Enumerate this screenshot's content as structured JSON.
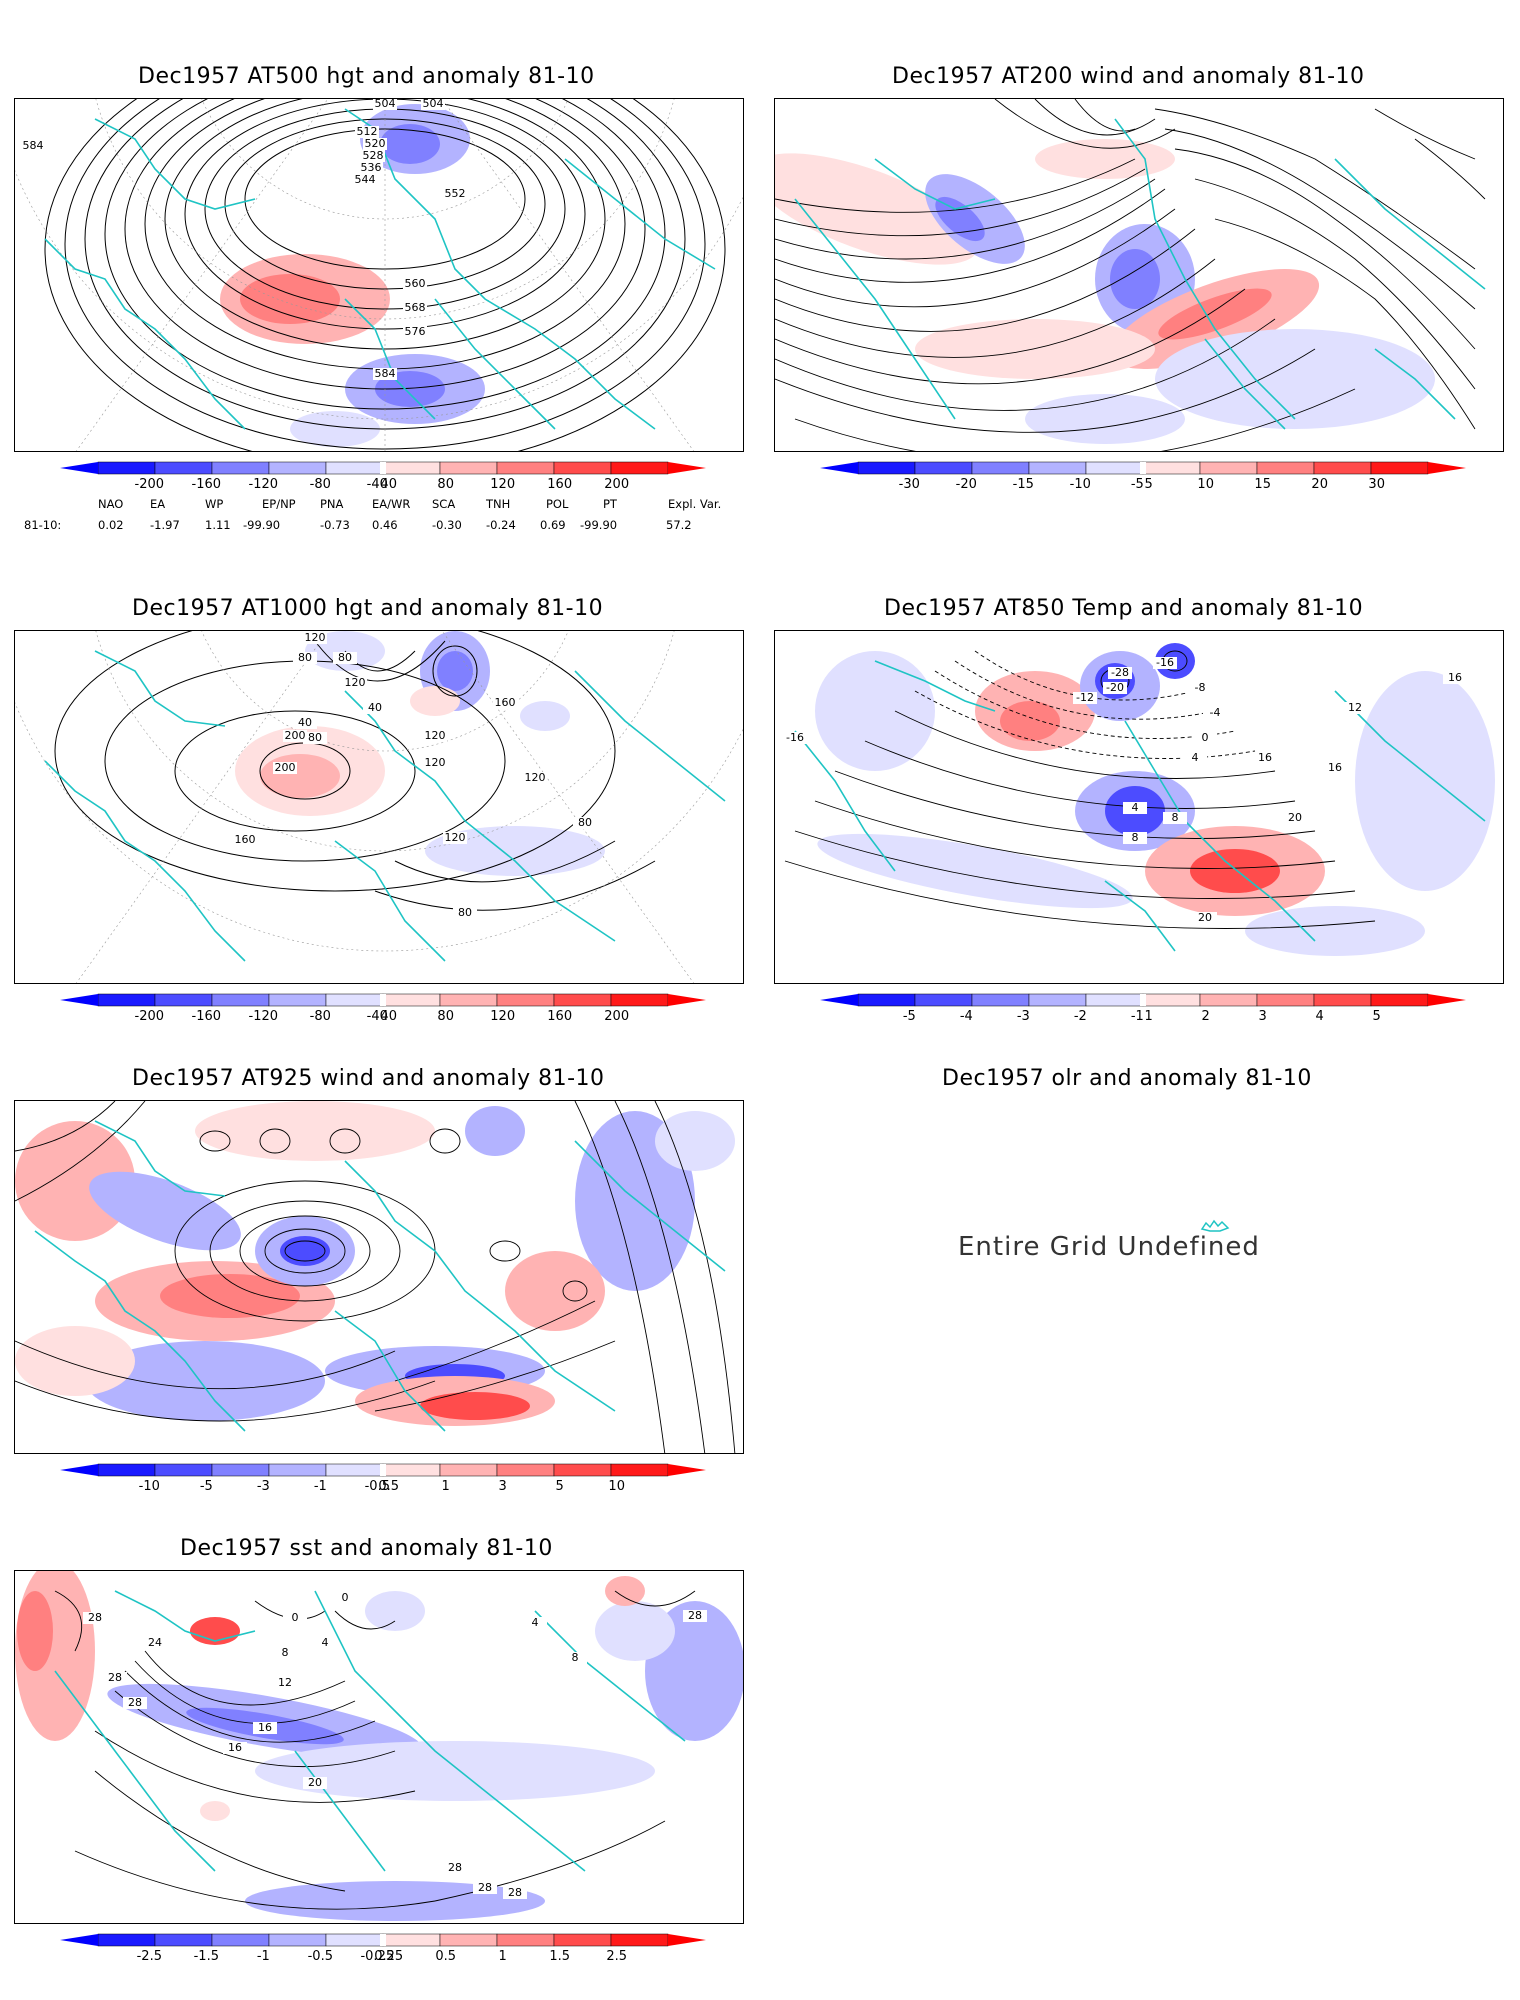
{
  "panels": [
    {
      "id": "p1",
      "title": "Dec1957 AT500 hgt and anomaly 81-10",
      "contour_labels": [
        "504",
        "504",
        "512",
        "520",
        "528",
        "536",
        "544",
        "552",
        "560",
        "568",
        "576",
        "584",
        "584"
      ],
      "colorbar": {
        "labels": [
          "-200",
          "-160",
          "-120",
          "-80",
          "-40",
          "40",
          "80",
          "120",
          "160",
          "200"
        ]
      }
    },
    {
      "id": "p2",
      "title": "Dec1957 AT200 wind and anomaly 81-10",
      "contour_labels": [],
      "colorbar": {
        "labels": [
          "-30",
          "-20",
          "-15",
          "-10",
          "-5",
          "5",
          "10",
          "15",
          "20",
          "30"
        ]
      }
    },
    {
      "id": "p3",
      "title": "Dec1957 AT1000 hgt and anomaly 81-10",
      "contour_labels": [
        "120",
        "80",
        "80",
        "120",
        "40",
        "40",
        "80",
        "200",
        "200",
        "120",
        "120",
        "160",
        "120",
        "80",
        "160",
        "120",
        "80"
      ],
      "colorbar": {
        "labels": [
          "-200",
          "-160",
          "-120",
          "-80",
          "-40",
          "40",
          "80",
          "120",
          "160",
          "200"
        ]
      }
    },
    {
      "id": "p4",
      "title": "Dec1957 AT850 Temp and anomaly 81-10",
      "contour_labels": [
        "-16",
        "-28",
        "-16",
        "-20",
        "-12",
        "-8",
        "-4",
        "0",
        "4",
        "8",
        "12",
        "16",
        "16",
        "16",
        "20",
        "20",
        "4",
        "8"
      ],
      "colorbar": {
        "labels": [
          "-5",
          "-4",
          "-3",
          "-2",
          "-1",
          "1",
          "2",
          "3",
          "4",
          "5"
        ]
      }
    },
    {
      "id": "p5",
      "title": "Dec1957 AT925 wind and anomaly 81-10",
      "contour_labels": [],
      "colorbar": {
        "labels": [
          "-10",
          "-5",
          "-3",
          "-1",
          "-0.5",
          "0.5",
          "1",
          "3",
          "5",
          "10"
        ]
      }
    },
    {
      "id": "p6",
      "title": "Dec1957 olr and anomaly 81-10",
      "undefined_text": "Entire Grid Undefined"
    },
    {
      "id": "p7",
      "title": "Dec1957 sst and anomaly 81-10",
      "contour_labels": [
        "28",
        "28",
        "28",
        "24",
        "0",
        "0",
        "4",
        "8",
        "12",
        "16",
        "16",
        "20",
        "28",
        "28",
        "28",
        "28",
        "4",
        "8"
      ],
      "colorbar": {
        "labels": [
          "-2.5",
          "-1.5",
          "-1",
          "-0.5",
          "-0.25",
          "0.25",
          "0.5",
          "1",
          "1.5",
          "2.5"
        ]
      }
    }
  ],
  "indices": {
    "headers": [
      "NAO",
      "EA",
      "WP",
      "EP/NP",
      "PNA",
      "EA/WR",
      "SCA",
      "TNH",
      "POL",
      "PT",
      "Expl. Var."
    ],
    "row_label": "81-10:",
    "values": [
      "0.02",
      "-1.97",
      "1.11",
      "-99.90",
      "-0.73",
      "0.46",
      "-0.30",
      "-0.24",
      "0.69",
      "-99.90",
      "57.2"
    ]
  },
  "colors": {
    "coast": "#1fc4c4",
    "contour": "#000000",
    "blues": [
      "#1a1aff",
      "#4c4cff",
      "#8080ff",
      "#b3b3ff",
      "#e0e0ff"
    ],
    "reds": [
      "#ffe0e0",
      "#ffb3b3",
      "#ff8080",
      "#ff4c4c",
      "#ff1a1a"
    ]
  }
}
